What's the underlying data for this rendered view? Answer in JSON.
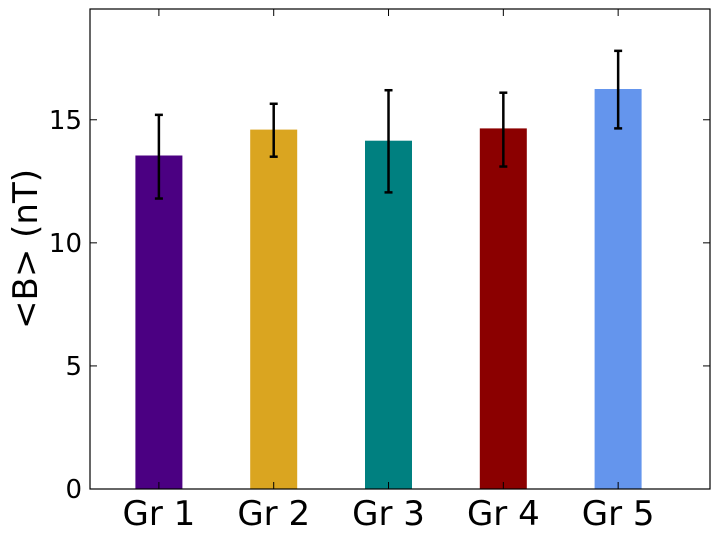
{
  "chart_data": {
    "type": "bar",
    "title": "",
    "xlabel": "",
    "ylabel": "<B> (nT)",
    "categories": [
      "Gr 1",
      "Gr 2",
      "Gr 3",
      "Gr 4",
      "Gr 5"
    ],
    "values": [
      13.55,
      14.6,
      14.15,
      14.65,
      16.25
    ],
    "error_low": [
      11.8,
      13.5,
      12.05,
      13.1,
      14.65
    ],
    "error_high": [
      15.2,
      15.65,
      16.2,
      16.1,
      17.8
    ],
    "colors": [
      "#4b0082",
      "#daa520",
      "#008080",
      "#8b0000",
      "#6495ed"
    ],
    "error_color": "#000000",
    "ylim": [
      0,
      19.5
    ],
    "yticks": [
      "0",
      "5",
      "10",
      "15"
    ],
    "grid": false,
    "legend": "none"
  }
}
